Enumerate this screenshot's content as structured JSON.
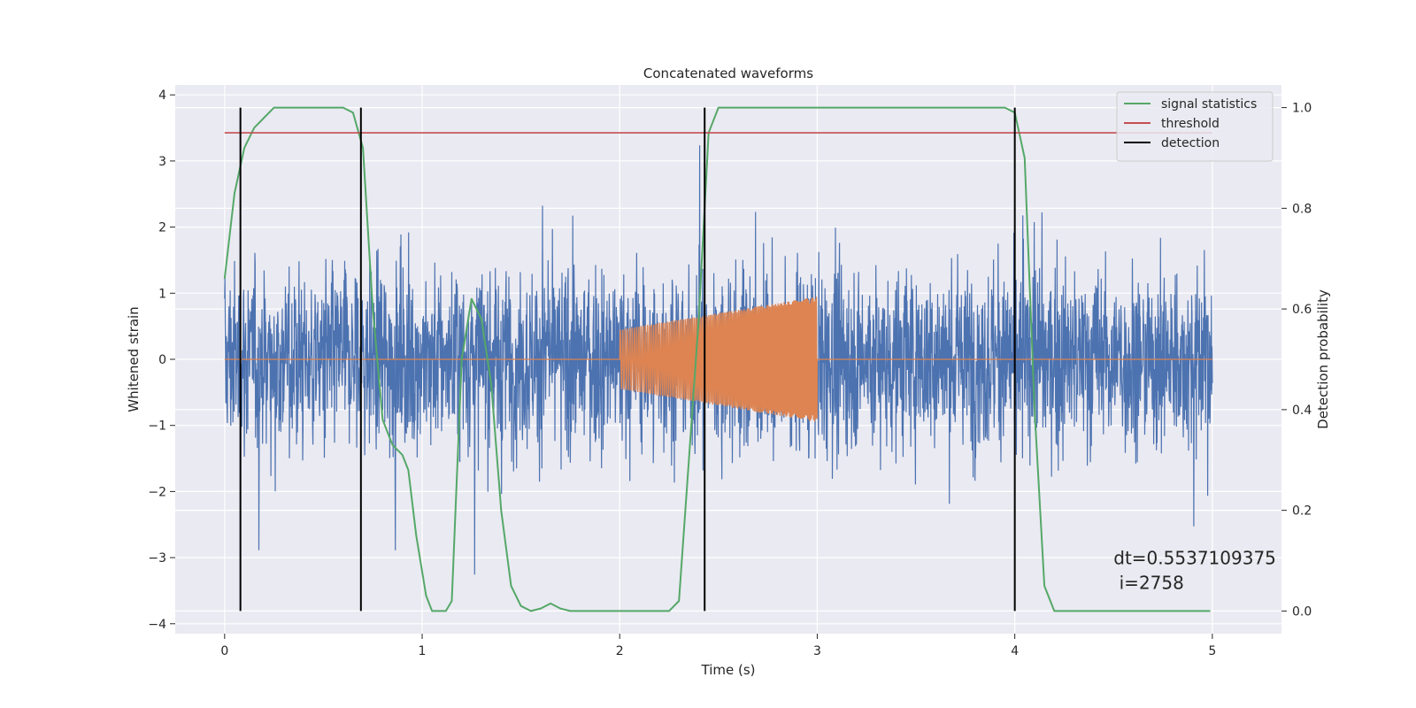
{
  "chart_data": {
    "type": "line",
    "title": "Concatenated waveforms",
    "xlabel": "Time (s)",
    "ylabel_left": "Whitened strain",
    "ylabel_right": "Detection probability",
    "xlim": [
      -0.25,
      5.35
    ],
    "ylim_left": [
      -4.15,
      4.15
    ],
    "ylim_right": [
      -0.045,
      1.045
    ],
    "x_ticks": [
      0,
      1,
      2,
      3,
      4,
      5
    ],
    "y_ticks_left": [
      4,
      3,
      2,
      1,
      0,
      -1,
      -2,
      -3,
      -4
    ],
    "y_ticks_right": [
      "1.0",
      "0.8",
      "0.6",
      "0.4",
      "0.2",
      "0.0"
    ],
    "grid": true,
    "legend_position": "top-right",
    "colors": {
      "background": "#eaeaf2",
      "grid": "#ffffff",
      "noise": "#4c72b0",
      "injection": "#dd8452",
      "signal_statistics": "#55a868",
      "threshold": "#c44e52",
      "detection": "#000000"
    },
    "series": [
      {
        "name": "signal statistics",
        "axis": "right",
        "points": [
          [
            0,
            0.66
          ],
          [
            0.05,
            0.83
          ],
          [
            0.1,
            0.92
          ],
          [
            0.15,
            0.96
          ],
          [
            0.2,
            0.98
          ],
          [
            0.25,
            1.0
          ],
          [
            0.6,
            1.0
          ],
          [
            0.65,
            0.99
          ],
          [
            0.7,
            0.92
          ],
          [
            0.75,
            0.6
          ],
          [
            0.8,
            0.38
          ],
          [
            0.85,
            0.33
          ],
          [
            0.9,
            0.31
          ],
          [
            0.93,
            0.28
          ],
          [
            0.97,
            0.15
          ],
          [
            1.02,
            0.03
          ],
          [
            1.05,
            0.0
          ],
          [
            1.12,
            0.0
          ],
          [
            1.15,
            0.02
          ],
          [
            1.2,
            0.5
          ],
          [
            1.25,
            0.62
          ],
          [
            1.3,
            0.58
          ],
          [
            1.35,
            0.45
          ],
          [
            1.4,
            0.2
          ],
          [
            1.45,
            0.05
          ],
          [
            1.5,
            0.01
          ],
          [
            1.55,
            0.0
          ],
          [
            1.6,
            0.005
          ],
          [
            1.65,
            0.015
          ],
          [
            1.7,
            0.005
          ],
          [
            1.75,
            0.0
          ],
          [
            2.25,
            0.0
          ],
          [
            2.3,
            0.02
          ],
          [
            2.35,
            0.3
          ],
          [
            2.4,
            0.58
          ],
          [
            2.45,
            0.95
          ],
          [
            2.5,
            1.0
          ],
          [
            3.95,
            1.0
          ],
          [
            4.0,
            0.99
          ],
          [
            4.05,
            0.9
          ],
          [
            4.1,
            0.4
          ],
          [
            4.15,
            0.05
          ],
          [
            4.2,
            0.0
          ],
          [
            4.99,
            0.0
          ]
        ]
      },
      {
        "name": "threshold",
        "axis": "right",
        "value": 0.95,
        "x_range": [
          0,
          5
        ]
      },
      {
        "name": "detection",
        "axis": "right",
        "x": [
          0.08,
          0.69,
          2.43,
          4.0
        ],
        "y_range": [
          0.0,
          1.0
        ]
      },
      {
        "name": "",
        "description_role": "noise",
        "axis": "left",
        "x_range": [
          0,
          5
        ],
        "typical_amplitude": 1.3,
        "peak_amplitude": 3.8
      },
      {
        "name": "",
        "description_role": "injection",
        "axis": "left",
        "x_range": [
          2,
          3
        ],
        "amplitude_start": 0.45,
        "amplitude_end": 0.95
      }
    ],
    "annotation": {
      "dt_text": "dt=0.5537109375",
      "i_text": " i=2758",
      "x": 4.5,
      "y_left": -3.1
    }
  }
}
